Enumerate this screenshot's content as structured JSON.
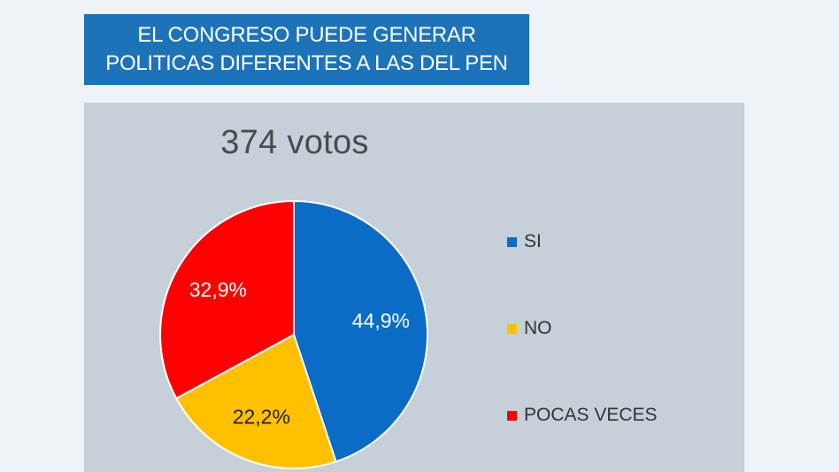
{
  "header": {
    "title_line1": "EL CONGRESO PUEDE GENERAR",
    "title_line2": "POLITICAS DIFERENTES A LAS DEL PEN"
  },
  "chart_data": {
    "type": "pie",
    "title": "374 votos",
    "categories": [
      "SI",
      "NO",
      "POCAS VECES"
    ],
    "values": [
      44.9,
      22.2,
      32.9
    ],
    "labels": [
      "44,9%",
      "22,2%",
      "32,9%"
    ],
    "colors": [
      "#0b6cc6",
      "#ffc000",
      "#ff0000"
    ],
    "label_colors": [
      "#ffffff",
      "#222222",
      "#ffffff"
    ],
    "legend_position": "right"
  }
}
